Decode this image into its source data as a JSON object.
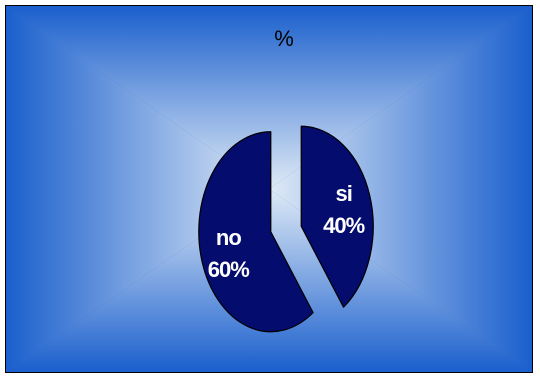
{
  "colors": {
    "background_edge": "#1a5fcd",
    "background_center": "#dfeaf6",
    "slice_fill": "#040c6e",
    "slice_stroke": "#000000",
    "label_text": "#ffffff",
    "title_text": "#000000"
  },
  "chart_data": {
    "type": "pie",
    "title": "%",
    "slices": [
      {
        "label": "si",
        "value": 40,
        "percent_label": "40%",
        "exploded": true
      },
      {
        "label": "no",
        "value": 60,
        "percent_label": "60%",
        "exploded": true
      }
    ],
    "style": "3d-tilted",
    "legend": "none"
  }
}
